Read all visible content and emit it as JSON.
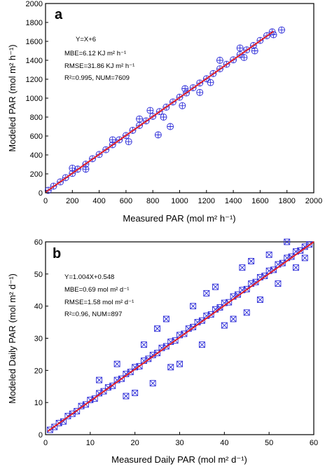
{
  "colors": {
    "points": "#2b2bd8",
    "fit_line": "#e0202a",
    "axes": "#000000"
  },
  "chart_data": [
    {
      "type": "scatter",
      "panel_label": "a",
      "xlabel": "Measured  PAR (mol m² h⁻¹)",
      "ylabel": "Modeled  PAR (mol m² h⁻¹)",
      "xlim": [
        0,
        2000
      ],
      "ylim": [
        0,
        2000
      ],
      "xticks": [
        "0",
        "200",
        "400",
        "600",
        "800",
        "1000",
        "1200",
        "1400",
        "1600",
        "1800",
        "2000"
      ],
      "yticks": [
        "0",
        "200",
        "400",
        "600",
        "800",
        "1000",
        "1200",
        "1400",
        "1600",
        "1800",
        "2000"
      ],
      "marker": "circle-plus",
      "annotations": [
        "Y=X+6",
        "MBE=6.12 KJ m² h⁻¹",
        "RMSE=31.86 KJ m² h⁻¹",
        "R²=0.995, NUM=7609"
      ],
      "fit_line": {
        "slope": 1.0,
        "intercept": 6,
        "x_range": [
          0,
          1700
        ]
      },
      "points": [
        [
          20,
          26
        ],
        [
          60,
          70
        ],
        [
          110,
          115
        ],
        [
          150,
          160
        ],
        [
          200,
          205
        ],
        [
          240,
          250
        ],
        [
          300,
          302
        ],
        [
          350,
          360
        ],
        [
          400,
          405
        ],
        [
          450,
          455
        ],
        [
          500,
          508
        ],
        [
          550,
          560
        ],
        [
          600,
          605
        ],
        [
          650,
          660
        ],
        [
          700,
          712
        ],
        [
          750,
          760
        ],
        [
          800,
          808
        ],
        [
          850,
          858
        ],
        [
          900,
          905
        ],
        [
          950,
          960
        ],
        [
          1000,
          1010
        ],
        [
          1050,
          1055
        ],
        [
          1100,
          1110
        ],
        [
          1150,
          1160
        ],
        [
          1200,
          1205
        ],
        [
          1250,
          1260
        ],
        [
          1300,
          1310
        ],
        [
          1350,
          1358
        ],
        [
          1400,
          1405
        ],
        [
          1450,
          1460
        ],
        [
          1500,
          1510
        ],
        [
          1550,
          1556
        ],
        [
          1600,
          1610
        ],
        [
          1650,
          1660
        ],
        [
          1690,
          1700
        ],
        [
          1760,
          1720
        ],
        [
          1700,
          1670
        ],
        [
          840,
          612
        ],
        [
          930,
          700
        ],
        [
          1230,
          1165
        ],
        [
          1480,
          1430
        ],
        [
          1020,
          920
        ],
        [
          1040,
          1100
        ],
        [
          700,
          780
        ],
        [
          500,
          560
        ],
        [
          880,
          800
        ],
        [
          300,
          250
        ],
        [
          1300,
          1400
        ],
        [
          1450,
          1530
        ],
        [
          620,
          540
        ],
        [
          200,
          260
        ],
        [
          1560,
          1500
        ],
        [
          1150,
          1060
        ],
        [
          780,
          870
        ]
      ]
    },
    {
      "type": "scatter",
      "panel_label": "b",
      "xlabel": "Measured Daily PAR (mol m² d⁻¹)",
      "ylabel": "Modeled Daily PAR (mol m² d⁻¹)",
      "xlim": [
        0,
        60
      ],
      "ylim": [
        0,
        60
      ],
      "xticks": [
        "0",
        "10",
        "20",
        "30",
        "40",
        "50",
        "60"
      ],
      "yticks": [
        "0",
        "10",
        "20",
        "30",
        "40",
        "50",
        "60"
      ],
      "marker": "square-x",
      "annotations": [
        "Y=1.004X+0.548",
        "MBE=0.69 mol m² d⁻¹",
        "RMSE=1.58 mol m² d⁻¹",
        "R²=0.96, NUM=897"
      ],
      "fit_line": {
        "slope": 1.004,
        "intercept": 0.548,
        "x_range": [
          0.5,
          60
        ]
      },
      "points": [
        [
          1,
          1.5
        ],
        [
          2,
          2.4
        ],
        [
          3,
          3.6
        ],
        [
          4,
          4.1
        ],
        [
          5,
          5.8
        ],
        [
          6,
          6.5
        ],
        [
          7,
          7.3
        ],
        [
          8,
          8.9
        ],
        [
          9,
          9.4
        ],
        [
          10,
          10.8
        ],
        [
          11,
          11.2
        ],
        [
          12,
          12.9
        ],
        [
          13,
          13.5
        ],
        [
          14,
          14.7
        ],
        [
          15,
          15.2
        ],
        [
          16,
          17.0
        ],
        [
          17,
          17.4
        ],
        [
          18,
          18.9
        ],
        [
          19,
          19.5
        ],
        [
          20,
          21.0
        ],
        [
          21,
          21.3
        ],
        [
          22,
          23.0
        ],
        [
          23,
          23.6
        ],
        [
          24,
          24.8
        ],
        [
          25,
          25.4
        ],
        [
          26,
          27.0
        ],
        [
          27,
          27.5
        ],
        [
          28,
          28.9
        ],
        [
          29,
          29.3
        ],
        [
          30,
          31.0
        ],
        [
          31,
          31.4
        ],
        [
          32,
          33.0
        ],
        [
          33,
          33.5
        ],
        [
          34,
          35.0
        ],
        [
          35,
          35.5
        ],
        [
          36,
          37.0
        ],
        [
          37,
          37.4
        ],
        [
          38,
          39.0
        ],
        [
          39,
          39.6
        ],
        [
          40,
          41.0
        ],
        [
          41,
          41.2
        ],
        [
          42,
          43.0
        ],
        [
          43,
          43.6
        ],
        [
          44,
          45.0
        ],
        [
          45,
          45.3
        ],
        [
          46,
          47.0
        ],
        [
          47,
          47.5
        ],
        [
          48,
          49.0
        ],
        [
          49,
          49.4
        ],
        [
          50,
          51.0
        ],
        [
          51,
          51.3
        ],
        [
          52,
          53.0
        ],
        [
          53,
          53.4
        ],
        [
          54,
          55.0
        ],
        [
          55,
          55.4
        ],
        [
          56,
          57.0
        ],
        [
          57,
          57.3
        ],
        [
          58,
          58.5
        ],
        [
          59,
          59.2
        ],
        [
          20,
          13
        ],
        [
          16,
          22
        ],
        [
          30,
          22
        ],
        [
          35,
          28
        ],
        [
          25,
          33
        ],
        [
          40,
          34
        ],
        [
          45,
          38
        ],
        [
          38,
          46
        ],
        [
          48,
          42
        ],
        [
          52,
          47
        ],
        [
          44,
          52
        ],
        [
          33,
          40
        ],
        [
          22,
          28
        ],
        [
          28,
          21
        ],
        [
          50,
          56
        ],
        [
          56,
          52
        ],
        [
          42,
          36
        ],
        [
          36,
          44
        ],
        [
          54,
          60
        ],
        [
          58,
          55
        ],
        [
          12,
          17
        ],
        [
          18,
          12
        ],
        [
          27,
          36
        ],
        [
          46,
          54
        ],
        [
          24,
          16
        ]
      ]
    }
  ]
}
